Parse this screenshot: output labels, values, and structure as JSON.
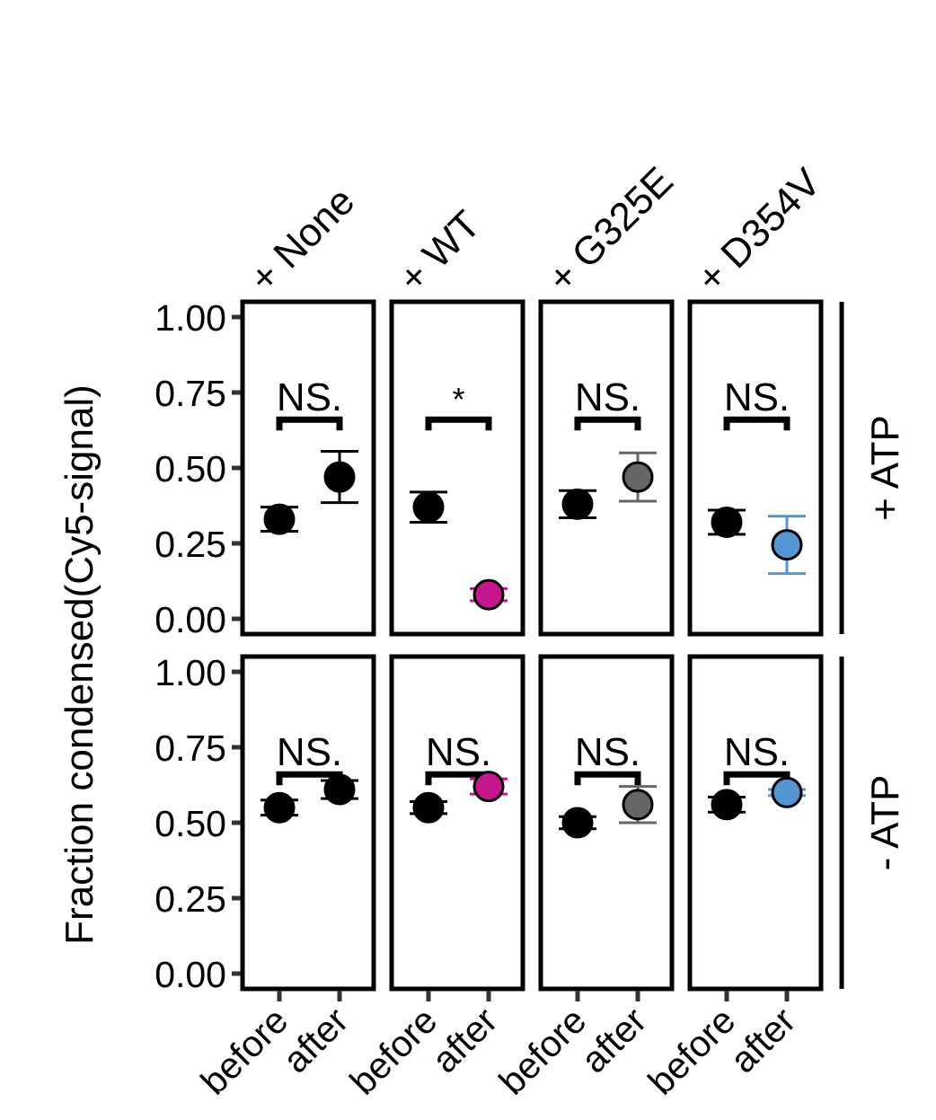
{
  "chart_data": {
    "type": "scatter",
    "ylabel": "Fraction condensed(Cy5-signal)",
    "ylim": [
      0,
      1
    ],
    "yticks": [
      "0.00",
      "0.25",
      "0.50",
      "0.75",
      "1.00"
    ],
    "x_categories": [
      "before",
      "after"
    ],
    "columns": [
      {
        "label": "+ None",
        "color": "#000000"
      },
      {
        "label": "+ WT",
        "color": "#c6168d"
      },
      {
        "label": "+ G325E",
        "color": "#666666"
      },
      {
        "label": "+ D354V",
        "color": "#5596d0"
      }
    ],
    "rows": [
      {
        "label": "+ ATP",
        "panels": [
          {
            "significance": "NS.",
            "before": {
              "mean": 0.33,
              "err": 0.04
            },
            "after": {
              "mean": 0.47,
              "err": 0.085
            }
          },
          {
            "significance": "*",
            "before": {
              "mean": 0.37,
              "err": 0.05
            },
            "after": {
              "mean": 0.08,
              "err": 0.02
            }
          },
          {
            "significance": "NS.",
            "before": {
              "mean": 0.38,
              "err": 0.045
            },
            "after": {
              "mean": 0.47,
              "err": 0.08
            }
          },
          {
            "significance": "NS.",
            "before": {
              "mean": 0.32,
              "err": 0.04
            },
            "after": {
              "mean": 0.245,
              "err": 0.095
            }
          }
        ]
      },
      {
        "label": "- ATP",
        "panels": [
          {
            "significance": "NS.",
            "before": {
              "mean": 0.55,
              "err": 0.025
            },
            "after": {
              "mean": 0.61,
              "err": 0.03
            }
          },
          {
            "significance": "NS.",
            "before": {
              "mean": 0.55,
              "err": 0.02
            },
            "after": {
              "mean": 0.62,
              "err": 0.025
            }
          },
          {
            "significance": "NS.",
            "before": {
              "mean": 0.5,
              "err": 0.02
            },
            "after": {
              "mean": 0.56,
              "err": 0.06
            }
          },
          {
            "significance": "NS.",
            "before": {
              "mean": 0.56,
              "err": 0.025
            },
            "after": {
              "mean": 0.6,
              "err": 0.01
            }
          }
        ]
      }
    ]
  }
}
